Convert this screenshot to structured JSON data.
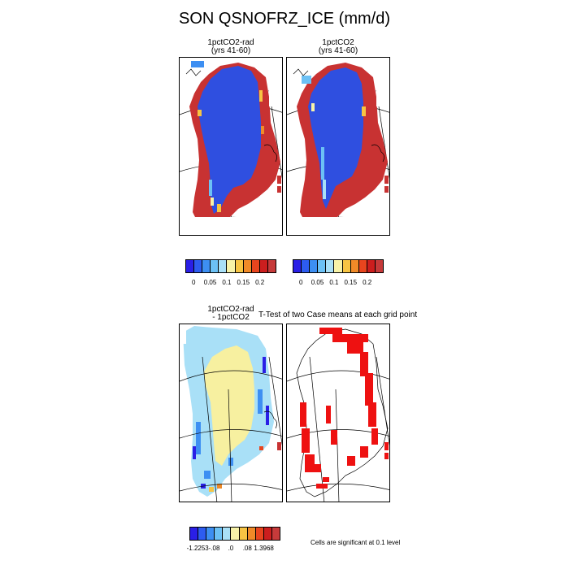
{
  "figure": {
    "title": "SON QSNOFRZ_ICE (mm/d)"
  },
  "panels": {
    "top_left": {
      "title_line1": "1pctCO2-rad",
      "title_line2": "(yrs 41-60)"
    },
    "top_right": {
      "title_line1": "1pctCO2",
      "title_line2": "(yrs 41-60)"
    },
    "bottom_left": {
      "title_line1": "1pctCO2-rad",
      "title_line2": "- 1pctCO2"
    },
    "bottom_right": {
      "title": "T-Test of two Case means at each grid point"
    }
  },
  "colorbars": {
    "top_left": {
      "colors": [
        "#2a1fe6",
        "#2d5cf0",
        "#3d8ff2",
        "#6cc1f5",
        "#a9e0f7",
        "#f7f2a8",
        "#f7c443",
        "#f08a28",
        "#e8451e",
        "#cc1e1e",
        "#c63a3a"
      ],
      "ticks": [
        "0",
        "0.05",
        "0.1",
        "0.15",
        "0.2"
      ]
    },
    "top_right": {
      "colors": [
        "#2a1fe6",
        "#2d5cf0",
        "#3d8ff2",
        "#6cc1f5",
        "#a9e0f7",
        "#f7f2a8",
        "#f7c443",
        "#f08a28",
        "#e8451e",
        "#cc1e1e",
        "#c63a3a"
      ],
      "ticks": [
        "0",
        "0.05",
        "0.1",
        "0.15",
        "0.2"
      ]
    },
    "bottom": {
      "colors": [
        "#2a1fe6",
        "#2d5cf0",
        "#3d8ff2",
        "#6cc1f5",
        "#a9e0f7",
        "#f7f2a8",
        "#f7c443",
        "#f08a28",
        "#e8451e",
        "#cc1e1e",
        "#c63a3a"
      ],
      "ticks": [
        "-1.2253",
        "-.08",
        ".0",
        ".08",
        "1.3968"
      ]
    }
  },
  "significance_note": "Cells are significant at 0.1 level",
  "map_colors": {
    "ice_blue": "#2f4fe0",
    "margin_red": "#c83232",
    "diff_yellow": "#f7f0a0",
    "diff_lightblue": "#a9e0f7",
    "diff_blue": "#3d8ff2",
    "significant_red": "#ee1111"
  }
}
